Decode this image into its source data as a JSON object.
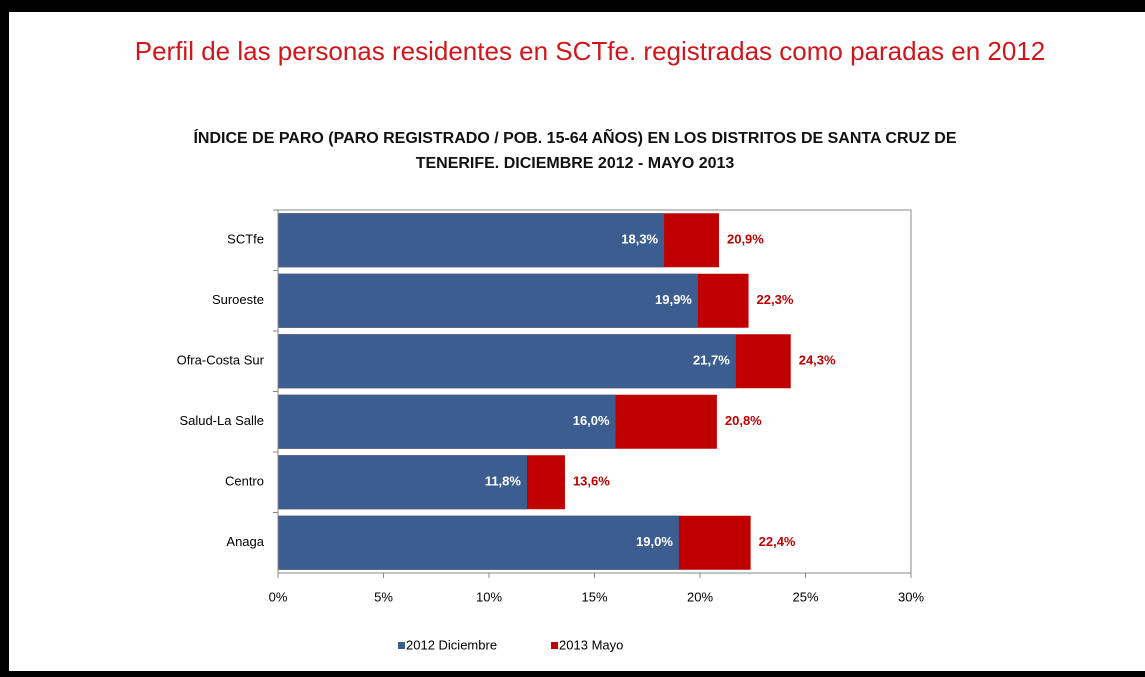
{
  "page_title": "Perfil de las personas residentes en SCTfe. registradas como paradas en 2012",
  "chart_data": {
    "type": "overlap_bar_horizontal",
    "title": "ÍNDICE DE PARO (PARO REGISTRADO / POB. 15-64 AÑOS) EN LOS DISTRITOS DE SANTA CRUZ DE TENERIFE. DICIEMBRE 2012 - MAYO 2013",
    "categories": [
      "SCTfe",
      "Suroeste",
      "Ofra-Costa Sur",
      "Salud-La Salle",
      "Centro",
      "Anaga"
    ],
    "series": [
      {
        "name": "2013 Mayo",
        "color": "#c00000",
        "label_color": "#c00000",
        "values": [
          20.9,
          22.3,
          24.3,
          20.8,
          13.6,
          22.4
        ],
        "value_labels": [
          "20,9%",
          "22,3%",
          "24,3%",
          "20,8%",
          "13,6%",
          "22,4%"
        ]
      },
      {
        "name": "2012 Diciembre",
        "color": "#3c5d8f",
        "label_color": "#ffffff",
        "values": [
          18.3,
          19.9,
          21.7,
          16.0,
          11.8,
          19.0
        ],
        "value_labels": [
          "18,3%",
          "19,9%",
          "21,7%",
          "16,0%",
          "11,8%",
          "19,0%"
        ]
      }
    ],
    "legend_order": [
      1,
      0
    ],
    "xlim": [
      0,
      30
    ],
    "xticks": [
      {
        "value": 0,
        "label": "0%"
      },
      {
        "value": 5,
        "label": "5%"
      },
      {
        "value": 10,
        "label": "10%"
      },
      {
        "value": 15,
        "label": "15%"
      },
      {
        "value": 20,
        "label": "20%"
      },
      {
        "value": 25,
        "label": "25%"
      },
      {
        "value": 30,
        "label": "30%"
      }
    ],
    "legend": "bottom"
  }
}
